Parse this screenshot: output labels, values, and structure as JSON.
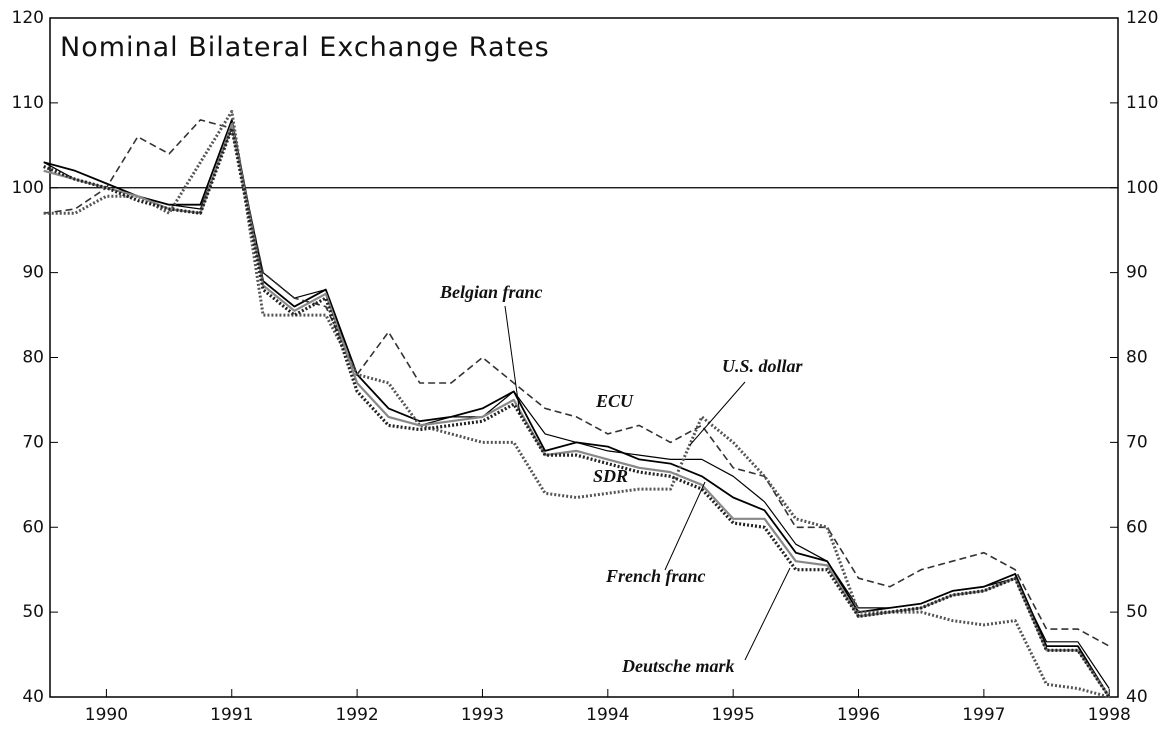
{
  "chart_data": {
    "type": "line",
    "title": "Nominal Bilateral Exchange Rates",
    "x": [
      1989.5,
      1989.75,
      1990,
      1990.25,
      1990.5,
      1990.75,
      1991,
      1991.25,
      1991.5,
      1991.75,
      1992,
      1992.25,
      1992.5,
      1992.75,
      1993,
      1993.25,
      1993.5,
      1993.75,
      1994,
      1994.25,
      1994.5,
      1994.75,
      1995,
      1995.25,
      1995.5,
      1995.75,
      1996,
      1996.25,
      1996.5,
      1996.75,
      1997,
      1997.25,
      1997.5,
      1997.75,
      1998
    ],
    "series": [
      {
        "name": "Belgian franc",
        "color": "#000000",
        "style": "solid",
        "values": [
          103,
          102,
          100.5,
          99,
          98,
          98,
          108,
          89,
          86,
          88,
          78,
          74,
          72.5,
          73,
          74,
          76,
          69,
          70,
          69.5,
          68,
          67.5,
          66,
          63.5,
          62,
          57,
          56,
          50,
          50.5,
          51,
          52.5,
          53,
          54.5,
          46,
          46,
          40
        ]
      },
      {
        "name": "U.S. dollar",
        "color": "#000000",
        "style": "solid",
        "values": [
          103,
          101,
          100,
          99,
          98,
          97.5,
          107,
          90,
          87,
          88,
          77,
          73,
          72,
          73,
          73,
          76,
          71,
          70,
          69,
          68.5,
          68,
          68,
          66,
          63,
          58,
          56,
          50.5,
          50.5,
          51,
          52.5,
          53,
          54,
          46.5,
          46.5,
          41
        ]
      },
      {
        "name": "ECU",
        "color": "#333333",
        "style": "dashed",
        "values": [
          97,
          97.5,
          100,
          106,
          104,
          108,
          107,
          90,
          87,
          86,
          78,
          83,
          77,
          77,
          80,
          77,
          74,
          73,
          71,
          72,
          70,
          72,
          67,
          66,
          60,
          60,
          54,
          53,
          55,
          56,
          57,
          55,
          48,
          48,
          46
        ]
      },
      {
        "name": "SDR",
        "color": "#555555",
        "style": "dotted",
        "values": [
          97,
          97,
          99,
          99,
          97,
          103,
          109,
          85,
          85,
          85,
          78,
          77,
          72,
          71,
          70,
          70,
          64,
          63.5,
          64,
          64.5,
          64.5,
          73,
          70,
          66,
          61,
          60,
          50,
          50,
          50,
          49,
          48.5,
          49,
          41.5,
          41,
          40
        ]
      },
      {
        "name": "French franc",
        "color": "#888888",
        "style": "solid",
        "values": [
          102,
          101,
          100,
          99,
          97.5,
          97,
          107.5,
          88.5,
          85.5,
          87.5,
          77,
          73,
          72,
          72.5,
          73,
          75,
          68.5,
          69,
          68,
          67,
          66.5,
          65,
          61,
          61,
          56,
          55.5,
          49.5,
          50,
          50.5,
          52,
          52.5,
          54,
          45.5,
          45.5,
          40
        ]
      },
      {
        "name": "Deutsche mark",
        "color": "#222222",
        "style": "dotted",
        "values": [
          102.5,
          101,
          100,
          98.5,
          97.5,
          97,
          107,
          88,
          85,
          87,
          76,
          72,
          71.5,
          72,
          72.5,
          74.5,
          68.5,
          68.5,
          67.5,
          66.5,
          66,
          64.5,
          60.5,
          60,
          55,
          55,
          49.5,
          50,
          50.5,
          52,
          52.5,
          54,
          45.5,
          45.5,
          40
        ]
      }
    ],
    "reference_line": 100,
    "xlim": [
      1989.55,
      1998.07
    ],
    "xticks": [
      1990,
      1991,
      1992,
      1993,
      1994,
      1995,
      1996,
      1997,
      1998
    ],
    "ylim": [
      40,
      120
    ],
    "yticks": [
      40,
      50,
      60,
      70,
      80,
      90,
      100,
      110,
      120
    ],
    "y2lim": [
      40,
      120
    ],
    "y2ticks": [
      40,
      50,
      60,
      70,
      80,
      90,
      100,
      110,
      120
    ]
  }
}
